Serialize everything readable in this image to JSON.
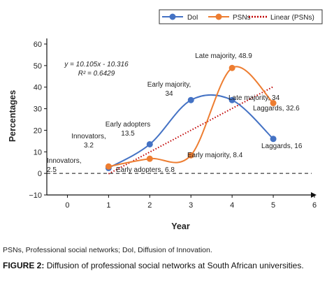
{
  "chart_data": {
    "type": "line",
    "xlabel": "Year",
    "ylabel": "Percentages",
    "xlim": [
      -0.5,
      6
    ],
    "ylim": [
      -10,
      60
    ],
    "xticks": [
      0,
      1,
      2,
      3,
      4,
      5,
      6
    ],
    "yticks": [
      -10,
      0,
      10,
      20,
      30,
      40,
      50,
      60
    ],
    "grid": false,
    "legend_position": "top-right",
    "series": [
      {
        "name": "DoI",
        "color": "#4472C4",
        "x": [
          1,
          2,
          3,
          4,
          5
        ],
        "y": [
          2.5,
          13.5,
          34,
          34,
          16
        ],
        "labels": [
          "Innovators, 2.5",
          "Early adopters 13.5",
          "Early majority, 34",
          "Late majority, 34",
          "Laggards, 16"
        ]
      },
      {
        "name": "PSNs",
        "color": "#ED7D31",
        "x": [
          1,
          2,
          3,
          4,
          5
        ],
        "y": [
          3.2,
          6.8,
          8.4,
          48.9,
          32.6
        ],
        "labels": [
          "Innovators, 3.2",
          "Early adopters, 6.8",
          "Early majority, 8.4",
          "Late majority, 48.9",
          "Laggards, 32.6"
        ]
      },
      {
        "name": "Linear (PSNs)",
        "color": "#C00000",
        "style": "dotted",
        "x": [
          1,
          5
        ],
        "y": [
          -0.211,
          40.209
        ]
      }
    ],
    "annotations": [
      "y = 10.105x - 10.316",
      "R² = 0.6429"
    ]
  },
  "footnote": "PSNs, Professional social networks; DoI, Diffusion of Innovation.",
  "caption": {
    "label": "FIGURE 2:",
    "text": "Diffusion of professional social networks at South African universities."
  }
}
